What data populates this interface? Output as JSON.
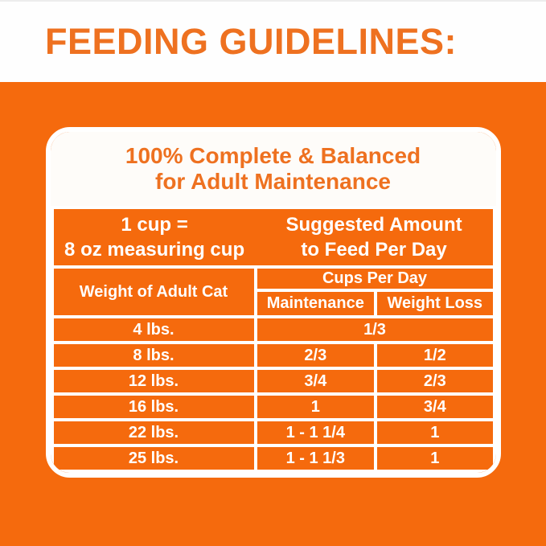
{
  "page_title": "FEEDING GUIDELINES:",
  "panel": {
    "heading_line1": "100% Complete & Balanced",
    "heading_line2": "for Adult Maintenance"
  },
  "table": {
    "info_left_line1": "1 cup =",
    "info_left_line2": "8 oz measuring cup",
    "info_right_line1": "Suggested Amount",
    "info_right_line2": "to Feed Per Day",
    "col_weight": "Weight of Adult Cat",
    "col_cups": "Cups Per Day",
    "col_maintenance": "Maintenance",
    "col_weight_loss": "Weight Loss",
    "rows": [
      {
        "weight": "4 lbs.",
        "maintenance": "1/3",
        "weight_loss": ""
      },
      {
        "weight": "8 lbs.",
        "maintenance": "2/3",
        "weight_loss": "1/2"
      },
      {
        "weight": "12 lbs.",
        "maintenance": "3/4",
        "weight_loss": "2/3"
      },
      {
        "weight": "16 lbs.",
        "maintenance": "1",
        "weight_loss": "3/4"
      },
      {
        "weight": "22 lbs.",
        "maintenance": "1 - 1 1/4",
        "weight_loss": "1"
      },
      {
        "weight": "25 lbs.",
        "maintenance": "1 - 1 1/3",
        "weight_loss": "1"
      }
    ]
  },
  "colors": {
    "background_orange": "#f56a0d",
    "title_orange": "#ee7120",
    "grid_white": "#ffffff"
  }
}
